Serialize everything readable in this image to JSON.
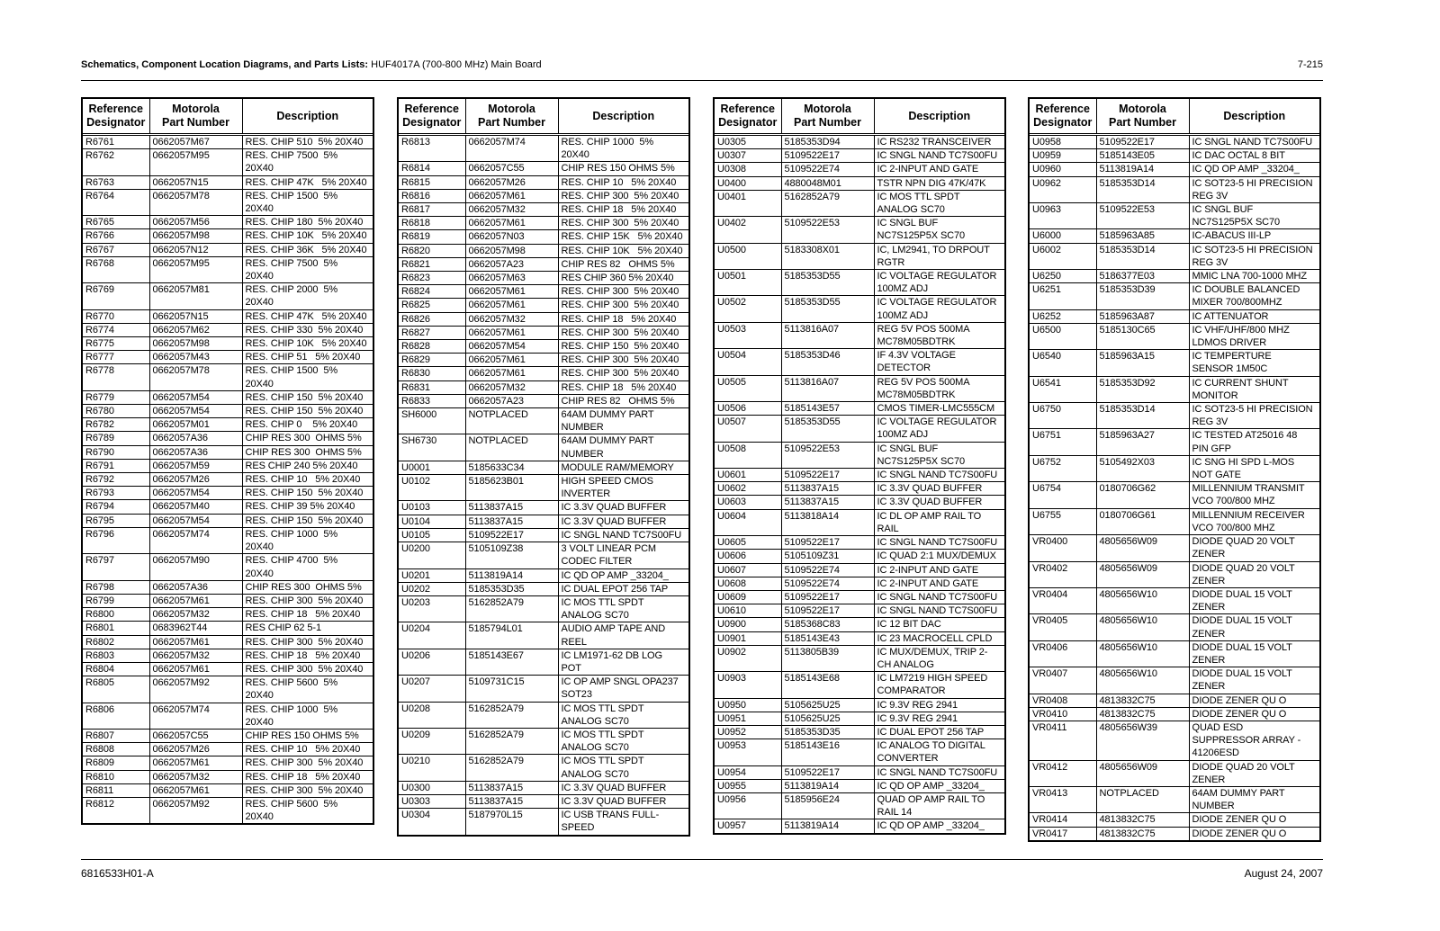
{
  "header": {
    "title_bold": "Schematics, Component Location Diagrams, and Parts Lists:",
    "title_rest": " HUF4017A (700-800 MHz) Main Board",
    "page": "7-215"
  },
  "footer": {
    "doc_number": "6816533H01-A",
    "date": "August 24, 2007"
  },
  "columns": [
    "Reference\nDesignator",
    "Motorola\nPart Number",
    "Description"
  ],
  "tables": [
    [
      [
        "R6761",
        "0662057M67",
        "RES. CHIP 510  5% 20X40"
      ],
      [
        "R6762",
        "0662057M95",
        "RES. CHIP 7500  5%\n20X40"
      ],
      [
        "R6763",
        "0662057N15",
        "RES. CHIP 47K   5% 20X40"
      ],
      [
        "R6764",
        "0662057M78",
        "RES. CHIP 1500  5%\n20X40"
      ],
      [
        "R6765",
        "0662057M56",
        "RES. CHIP 180  5% 20X40"
      ],
      [
        "R6766",
        "0662057M98",
        "RES. CHIP 10K   5% 20X40"
      ],
      [
        "R6767",
        "0662057N12",
        "RES. CHIP 36K   5% 20X40"
      ],
      [
        "R6768",
        "0662057M95",
        "RES. CHIP 7500  5%\n20X40"
      ],
      [
        "R6769",
        "0662057M81",
        "RES. CHIP 2000  5%\n20X40"
      ],
      [
        "R6770",
        "0662057N15",
        "RES. CHIP 47K   5% 20X40"
      ],
      [
        "R6774",
        "0662057M62",
        "RES. CHIP 330  5% 20X40"
      ],
      [
        "R6775",
        "0662057M98",
        "RES. CHIP 10K   5% 20X40"
      ],
      [
        "R6777",
        "0662057M43",
        "RES. CHIP 51   5% 20X40"
      ],
      [
        "R6778",
        "0662057M78",
        "RES. CHIP 1500  5%\n20X40"
      ],
      [
        "R6779",
        "0662057M54",
        "RES. CHIP 150  5% 20X40"
      ],
      [
        "R6780",
        "0662057M54",
        "RES. CHIP 150  5% 20X40"
      ],
      [
        "R6782",
        "0662057M01",
        "RES. CHIP 0    5% 20X40"
      ],
      [
        "R6789",
        "0662057A36",
        "CHIP RES 300  OHMS 5%"
      ],
      [
        "R6790",
        "0662057A36",
        "CHIP RES 300  OHMS 5%"
      ],
      [
        "R6791",
        "0662057M59",
        "RES CHIP 240 5% 20X40"
      ],
      [
        "R6792",
        "0662057M26",
        "RES. CHIP 10   5% 20X40"
      ],
      [
        "R6793",
        "0662057M54",
        "RES. CHIP 150  5% 20X40"
      ],
      [
        "R6794",
        "0662057M40",
        "RES. CHIP 39 5% 20X40"
      ],
      [
        "R6795",
        "0662057M54",
        "RES. CHIP 150  5% 20X40"
      ],
      [
        "R6796",
        "0662057M74",
        "RES. CHIP 1000  5%\n20X40"
      ],
      [
        "R6797",
        "0662057M90",
        "RES. CHIP 4700  5%\n20X40"
      ],
      [
        "R6798",
        "0662057A36",
        "CHIP RES 300  OHMS 5%"
      ],
      [
        "R6799",
        "0662057M61",
        "RES. CHIP 300  5% 20X40"
      ],
      [
        "R6800",
        "0662057M32",
        "RES. CHIP 18   5% 20X40"
      ],
      [
        "R6801",
        "0683962T44",
        "RES CHIP 62 5-1"
      ],
      [
        "R6802",
        "0662057M61",
        "RES. CHIP 300  5% 20X40"
      ],
      [
        "R6803",
        "0662057M32",
        "RES. CHIP 18   5% 20X40"
      ],
      [
        "R6804",
        "0662057M61",
        "RES. CHIP 300  5% 20X40"
      ],
      [
        "R6805",
        "0662057M92",
        "RES. CHIP 5600  5%\n20X40"
      ],
      [
        "R6806",
        "0662057M74",
        "RES. CHIP 1000  5%\n20X40"
      ],
      [
        "R6807",
        "0662057C55",
        "CHIP RES 150 OHMS 5%"
      ],
      [
        "R6808",
        "0662057M26",
        "RES. CHIP 10   5% 20X40"
      ],
      [
        "R6809",
        "0662057M61",
        "RES. CHIP 300  5% 20X40"
      ],
      [
        "R6810",
        "0662057M32",
        "RES. CHIP 18   5% 20X40"
      ],
      [
        "R6811",
        "0662057M61",
        "RES. CHIP 300  5% 20X40"
      ],
      [
        "R6812",
        "0662057M92",
        "RES. CHIP 5600  5%\n20X40"
      ]
    ],
    [
      [
        "R6813",
        "0662057M74",
        "RES. CHIP 1000  5%\n20X40"
      ],
      [
        "R6814",
        "0662057C55",
        "CHIP RES 150 OHMS 5%"
      ],
      [
        "R6815",
        "0662057M26",
        "RES. CHIP 10   5% 20X40"
      ],
      [
        "R6816",
        "0662057M61",
        "RES. CHIP 300  5% 20X40"
      ],
      [
        "R6817",
        "0662057M32",
        "RES. CHIP 18   5% 20X40"
      ],
      [
        "R6818",
        "0662057M61",
        "RES. CHIP 300  5% 20X40"
      ],
      [
        "R6819",
        "0662057N03",
        "RES. CHIP 15K   5% 20X40"
      ],
      [
        "R6820",
        "0662057M98",
        "RES. CHIP 10K   5% 20X40"
      ],
      [
        "R6821",
        "0662057A23",
        "CHIP RES 82   OHMS 5%"
      ],
      [
        "R6823",
        "0662057M63",
        "RES CHIP 360 5% 20X40"
      ],
      [
        "R6824",
        "0662057M61",
        "RES. CHIP 300  5% 20X40"
      ],
      [
        "R6825",
        "0662057M61",
        "RES. CHIP 300  5% 20X40"
      ],
      [
        "R6826",
        "0662057M32",
        "RES. CHIP 18   5% 20X40"
      ],
      [
        "R6827",
        "0662057M61",
        "RES. CHIP 300  5% 20X40"
      ],
      [
        "R6828",
        "0662057M54",
        "RES. CHIP 150  5% 20X40"
      ],
      [
        "R6829",
        "0662057M61",
        "RES. CHIP 300  5% 20X40"
      ],
      [
        "R6830",
        "0662057M61",
        "RES. CHIP 300  5% 20X40"
      ],
      [
        "R6831",
        "0662057M32",
        "RES. CHIP 18   5% 20X40"
      ],
      [
        "R6833",
        "0662057A23",
        "CHIP RES 82   OHMS 5%"
      ],
      [
        "SH6000",
        "NOTPLACED",
        "64AM DUMMY PART\nNUMBER"
      ],
      [
        "SH6730",
        "NOTPLACED",
        "64AM DUMMY PART\nNUMBER"
      ],
      [
        "U0001",
        "5185633C34",
        "MODULE RAM/MEMORY"
      ],
      [
        "U0102",
        "5185623B01",
        "HIGH SPEED CMOS\nINVERTER"
      ],
      [
        "U0103",
        "5113837A15",
        "IC 3.3V QUAD BUFFER"
      ],
      [
        "U0104",
        "5113837A15",
        "IC 3.3V QUAD BUFFER"
      ],
      [
        "U0105",
        "5109522E17",
        "IC SNGL NAND TC7S00FU"
      ],
      [
        "U0200",
        "5105109Z38",
        "3 VOLT LINEAR PCM\nCODEC FILTER"
      ],
      [
        "U0201",
        "5113819A14",
        "IC QD OP AMP _33204_"
      ],
      [
        "U0202",
        "5185353D35",
        "IC DUAL EPOT 256 TAP"
      ],
      [
        "U0203",
        "5162852A79",
        "IC MOS TTL SPDT\nANALOG SC70"
      ],
      [
        "U0204",
        "5185794L01",
        "AUDIO AMP TAPE AND\nREEL"
      ],
      [
        "U0206",
        "5185143E67",
        "IC LM1971-62 DB LOG\nPOT"
      ],
      [
        "U0207",
        "5109731C15",
        "IC OP AMP SNGL OPA237\nSOT23"
      ],
      [
        "U0208",
        "5162852A79",
        "IC MOS TTL SPDT\nANALOG SC70"
      ],
      [
        "U0209",
        "5162852A79",
        "IC MOS TTL SPDT\nANALOG SC70"
      ],
      [
        "U0210",
        "5162852A79",
        "IC MOS TTL SPDT\nANALOG SC70"
      ],
      [
        "U0300",
        "5113837A15",
        "IC 3.3V QUAD BUFFER"
      ],
      [
        "U0303",
        "5113837A15",
        "IC 3.3V QUAD BUFFER"
      ],
      [
        "U0304",
        "5187970L15",
        "IC USB TRANS FULL-\nSPEED"
      ]
    ],
    [
      [
        "U0305",
        "5185353D94",
        "IC RS232 TRANSCEIVER"
      ],
      [
        "U0307",
        "5109522E17",
        "IC SNGL NAND TC7S00FU"
      ],
      [
        "U0308",
        "5109522E74",
        "IC 2-INPUT AND GATE"
      ],
      [
        "U0400",
        "4880048M01",
        "TSTR NPN DIG 47K/47K"
      ],
      [
        "U0401",
        "5162852A79",
        "IC MOS TTL SPDT\nANALOG SC70"
      ],
      [
        "U0402",
        "5109522E53",
        "IC SNGL BUF\nNC7S125P5X SC70"
      ],
      [
        "U0500",
        "5183308X01",
        "IC, LM2941, TO DRPOUT\nRGTR"
      ],
      [
        "U0501",
        "5185353D55",
        "IC VOLTAGE REGULATOR\n100MZ ADJ"
      ],
      [
        "U0502",
        "5185353D55",
        "IC VOLTAGE REGULATOR\n100MZ ADJ"
      ],
      [
        "U0503",
        "5113816A07",
        "REG 5V POS 500MA\nMC78M05BDTRK"
      ],
      [
        "U0504",
        "5185353D46",
        "IF 4.3V VOLTAGE\nDETECTOR"
      ],
      [
        "U0505",
        "5113816A07",
        "REG 5V POS 500MA\nMC78M05BDTRK"
      ],
      [
        "U0506",
        "5185143E57",
        "CMOS TIMER-LMC555CM"
      ],
      [
        "U0507",
        "5185353D55",
        "IC VOLTAGE REGULATOR\n100MZ ADJ"
      ],
      [
        "U0508",
        "5109522E53",
        "IC SNGL BUF\nNC7S125P5X SC70"
      ],
      [
        "U0601",
        "5109522E17",
        "IC SNGL NAND TC7S00FU"
      ],
      [
        "U0602",
        "5113837A15",
        "IC 3.3V QUAD BUFFER"
      ],
      [
        "U0603",
        "5113837A15",
        "IC 3.3V QUAD BUFFER"
      ],
      [
        "U0604",
        "5113818A14",
        "IC DL OP AMP RAIL TO\nRAIL"
      ],
      [
        "U0605",
        "5109522E17",
        "IC SNGL NAND TC7S00FU"
      ],
      [
        "U0606",
        "5105109Z31",
        "IC QUAD 2:1 MUX/DEMUX"
      ],
      [
        "U0607",
        "5109522E74",
        "IC 2-INPUT AND GATE"
      ],
      [
        "U0608",
        "5109522E74",
        "IC 2-INPUT AND GATE"
      ],
      [
        "U0609",
        "5109522E17",
        "IC SNGL NAND TC7S00FU"
      ],
      [
        "U0610",
        "5109522E17",
        "IC SNGL NAND TC7S00FU"
      ],
      [
        "U0900",
        "5185368C83",
        "IC 12 BIT DAC"
      ],
      [
        "U0901",
        "5185143E43",
        "IC 23 MACROCELL CPLD"
      ],
      [
        "U0902",
        "5113805B39",
        "IC MUX/DEMUX, TRIP 2-\nCH ANALOG"
      ],
      [
        "U0903",
        "5185143E68",
        "IC LM7219 HIGH SPEED\nCOMPARATOR"
      ],
      [
        "U0950",
        "5105625U25",
        "IC 9.3V REG 2941"
      ],
      [
        "U0951",
        "5105625U25",
        "IC 9.3V REG 2941"
      ],
      [
        "U0952",
        "5185353D35",
        "IC DUAL EPOT 256 TAP"
      ],
      [
        "U0953",
        "5185143E16",
        "IC ANALOG TO DIGITAL\nCONVERTER"
      ],
      [
        "U0954",
        "5109522E17",
        "IC SNGL NAND TC7S00FU"
      ],
      [
        "U0955",
        "5113819A14",
        "IC QD OP AMP _33204_"
      ],
      [
        "U0956",
        "5185956E24",
        "QUAD OP AMP RAIL TO\nRAIL 14"
      ],
      [
        "U0957",
        "5113819A14",
        "IC QD OP AMP _33204_"
      ]
    ],
    [
      [
        "U0958",
        "5109522E17",
        "IC SNGL NAND TC7S00FU"
      ],
      [
        "U0959",
        "5185143E05",
        "IC DAC OCTAL 8 BIT"
      ],
      [
        "U0960",
        "5113819A14",
        "IC QD OP AMP _33204_"
      ],
      [
        "U0962",
        "5185353D14",
        "IC SOT23-5 HI PRECISION\nREG 3V"
      ],
      [
        "U0963",
        "5109522E53",
        "IC SNGL BUF\nNC7S125P5X SC70"
      ],
      [
        "U6000",
        "5185963A85",
        "IC-ABACUS III-LP"
      ],
      [
        "U6002",
        "5185353D14",
        "IC SOT23-5 HI PRECISION\nREG 3V"
      ],
      [
        "U6250",
        "5186377E03",
        "MMIC LNA 700-1000 MHZ"
      ],
      [
        "U6251",
        "5185353D39",
        "IC DOUBLE BALANCED\nMIXER 700/800MHZ"
      ],
      [
        "U6252",
        "5185963A87",
        "IC ATTENUATOR"
      ],
      [
        "U6500",
        "5185130C65",
        "IC VHF/UHF/800 MHZ\nLDMOS DRIVER"
      ],
      [
        "U6540",
        "5185963A15",
        "IC TEMPERTURE\nSENSOR 1M50C"
      ],
      [
        "U6541",
        "5185353D92",
        "IC CURRENT SHUNT\nMONITOR"
      ],
      [
        "U6750",
        "5185353D14",
        "IC SOT23-5 HI PRECISION\nREG 3V"
      ],
      [
        "U6751",
        "5185963A27",
        "IC TESTED AT25016 48\nPIN GFP"
      ],
      [
        "U6752",
        "5105492X03",
        "IC SNG HI SPD L-MOS\nNOT GATE"
      ],
      [
        "U6754",
        "0180706G62",
        "MILLENNIUM TRANSMIT\nVCO 700/800 MHZ"
      ],
      [
        "U6755",
        "0180706G61",
        "MILLENNIUM RECEIVER\nVCO 700/800 MHZ"
      ],
      [
        "VR0400",
        "4805656W09",
        "DIODE QUAD 20 VOLT\nZENER"
      ],
      [
        "VR0402",
        "4805656W09",
        "DIODE QUAD 20 VOLT\nZENER"
      ],
      [
        "VR0404",
        "4805656W10",
        "DIODE DUAL 15 VOLT\nZENER"
      ],
      [
        "VR0405",
        "4805656W10",
        "DIODE DUAL 15 VOLT\nZENER"
      ],
      [
        "VR0406",
        "4805656W10",
        "DIODE DUAL 15 VOLT\nZENER"
      ],
      [
        "VR0407",
        "4805656W10",
        "DIODE DUAL 15 VOLT\nZENER"
      ],
      [
        "VR0408",
        "4813832C75",
        "DIODE ZENER QU O"
      ],
      [
        "VR0410",
        "4813832C75",
        "DIODE ZENER QU O"
      ],
      [
        "VR0411",
        "4805656W39",
        "QUAD ESD\nSUPPRESSOR ARRAY -\n41206ESD"
      ],
      [
        "VR0412",
        "4805656W09",
        "DIODE QUAD 20 VOLT\nZENER"
      ],
      [
        "VR0413",
        "NOTPLACED",
        "64AM DUMMY PART\nNUMBER"
      ],
      [
        "VR0414",
        "4813832C75",
        "DIODE ZENER QU O"
      ],
      [
        "VR0417",
        "4813832C75",
        "DIODE ZENER QU O"
      ]
    ]
  ]
}
